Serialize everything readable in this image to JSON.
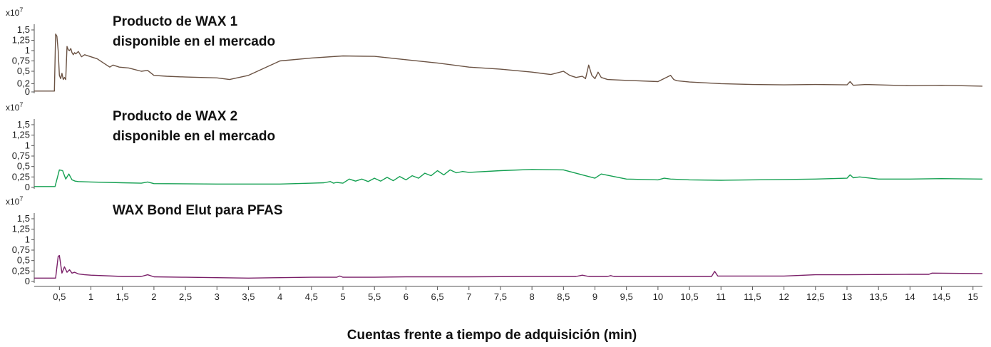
{
  "chart_data": {
    "type": "line",
    "xlabel": "Cuentas frente a tiempo de adquisición (min)",
    "xlim": [
      0.1,
      15.15
    ],
    "x_ticks": [
      "0,5",
      "1",
      "1,5",
      "2",
      "2,5",
      "3",
      "3,5",
      "4",
      "4,5",
      "5",
      "5,5",
      "6",
      "6,5",
      "7",
      "7,5",
      "8",
      "8,5",
      "9",
      "9,5",
      "10",
      "10,5",
      "11",
      "11,5",
      "12",
      "12,5",
      "13",
      "13,5",
      "14",
      "14,5",
      "15"
    ],
    "y_multiplier": "x10",
    "y_multiplier_exp": "7",
    "panels": [
      {
        "title_lines": [
          "Producto de WAX 1",
          "disponible en el mercado"
        ],
        "color": "#6b5344",
        "ylim": [
          0,
          1.5
        ],
        "y_ticks": [
          "0",
          "0,2",
          "0,5",
          "0,75",
          "1",
          "1,25",
          "1,5"
        ],
        "y_tick_values": [
          0,
          0.2,
          0.5,
          0.75,
          1,
          1.25,
          1.5
        ],
        "x": [
          0.1,
          0.42,
          0.44,
          0.46,
          0.48,
          0.5,
          0.52,
          0.54,
          0.56,
          0.58,
          0.6,
          0.62,
          0.64,
          0.66,
          0.68,
          0.7,
          0.72,
          0.74,
          0.76,
          0.8,
          0.85,
          0.9,
          1.0,
          1.1,
          1.2,
          1.3,
          1.35,
          1.45,
          1.6,
          1.8,
          1.9,
          2.0,
          2.2,
          2.5,
          3.0,
          3.2,
          3.5,
          4.0,
          4.5,
          5.0,
          5.5,
          6.0,
          6.5,
          7.0,
          7.5,
          8.0,
          8.3,
          8.5,
          8.6,
          8.7,
          8.8,
          8.85,
          8.9,
          8.95,
          9.0,
          9.05,
          9.1,
          9.2,
          9.5,
          10.0,
          10.2,
          10.25,
          10.3,
          10.5,
          11.0,
          11.5,
          12.0,
          12.5,
          13.0,
          13.05,
          13.1,
          13.3,
          14.0,
          14.5,
          15.15
        ],
        "y": [
          0.02,
          0.02,
          1.4,
          1.35,
          1.0,
          0.4,
          0.32,
          0.45,
          0.3,
          0.35,
          0.3,
          1.1,
          1.02,
          1.0,
          1.05,
          0.95,
          0.9,
          0.95,
          0.92,
          0.98,
          0.85,
          0.9,
          0.85,
          0.8,
          0.7,
          0.6,
          0.65,
          0.6,
          0.58,
          0.5,
          0.52,
          0.4,
          0.38,
          0.36,
          0.34,
          0.3,
          0.4,
          0.75,
          0.82,
          0.87,
          0.86,
          0.78,
          0.7,
          0.6,
          0.55,
          0.48,
          0.42,
          0.5,
          0.4,
          0.35,
          0.38,
          0.32,
          0.65,
          0.4,
          0.32,
          0.48,
          0.35,
          0.3,
          0.28,
          0.25,
          0.4,
          0.3,
          0.27,
          0.24,
          0.2,
          0.18,
          0.17,
          0.18,
          0.17,
          0.25,
          0.16,
          0.18,
          0.15,
          0.16,
          0.14
        ]
      },
      {
        "title_lines": [
          "Producto de WAX 2",
          "disponible en el mercado"
        ],
        "color": "#15a052",
        "ylim": [
          0,
          1.5
        ],
        "y_ticks": [
          "0",
          "0,25",
          "0,5",
          "0,75",
          "1",
          "1,25",
          "1,5"
        ],
        "y_tick_values": [
          0,
          0.25,
          0.5,
          0.75,
          1,
          1.25,
          1.5
        ],
        "x": [
          0.1,
          0.43,
          0.5,
          0.55,
          0.6,
          0.65,
          0.7,
          0.75,
          0.8,
          1.0,
          1.5,
          1.8,
          1.9,
          2.0,
          3.0,
          4.0,
          4.5,
          4.7,
          4.8,
          4.85,
          4.9,
          5.0,
          5.1,
          5.2,
          5.3,
          5.4,
          5.5,
          5.6,
          5.7,
          5.8,
          5.9,
          6.0,
          6.1,
          6.2,
          6.3,
          6.4,
          6.5,
          6.6,
          6.7,
          6.8,
          6.9,
          7.0,
          7.5,
          8.0,
          8.5,
          8.8,
          9.0,
          9.1,
          9.5,
          10.0,
          10.1,
          10.2,
          10.5,
          11.0,
          11.5,
          12.0,
          12.5,
          13.0,
          13.05,
          13.1,
          13.2,
          13.5,
          14.0,
          14.5,
          15.15
        ],
        "y": [
          0.02,
          0.02,
          0.42,
          0.4,
          0.2,
          0.32,
          0.18,
          0.15,
          0.14,
          0.13,
          0.11,
          0.1,
          0.13,
          0.09,
          0.08,
          0.08,
          0.1,
          0.11,
          0.14,
          0.1,
          0.12,
          0.1,
          0.2,
          0.15,
          0.2,
          0.14,
          0.22,
          0.15,
          0.24,
          0.16,
          0.26,
          0.18,
          0.28,
          0.22,
          0.34,
          0.28,
          0.4,
          0.3,
          0.42,
          0.35,
          0.38,
          0.36,
          0.4,
          0.43,
          0.42,
          0.3,
          0.22,
          0.32,
          0.2,
          0.18,
          0.22,
          0.2,
          0.18,
          0.17,
          0.18,
          0.19,
          0.2,
          0.22,
          0.3,
          0.23,
          0.25,
          0.2,
          0.2,
          0.21,
          0.2
        ]
      },
      {
        "title_lines": [
          "WAX Bond Elut para PFAS"
        ],
        "color": "#7a1f68",
        "ylim": [
          0,
          1.5
        ],
        "y_ticks": [
          "0",
          "0,25",
          "0,5",
          "0,75",
          "1",
          "1,25",
          "1,5"
        ],
        "y_tick_values": [
          0,
          0.25,
          0.5,
          0.75,
          1,
          1.25,
          1.5
        ],
        "x": [
          0.1,
          0.44,
          0.48,
          0.5,
          0.54,
          0.58,
          0.62,
          0.66,
          0.7,
          0.74,
          0.8,
          0.9,
          1.0,
          1.5,
          1.8,
          1.9,
          2.0,
          2.5,
          3.0,
          3.5,
          4.0,
          4.5,
          4.9,
          4.95,
          5.0,
          5.5,
          6.0,
          7.0,
          8.0,
          8.7,
          8.8,
          8.9,
          9.2,
          9.25,
          9.3,
          10.0,
          10.5,
          10.85,
          10.9,
          10.95,
          11.5,
          12.0,
          12.5,
          13.0,
          14.0,
          14.3,
          14.35,
          15.15
        ],
        "y": [
          0.08,
          0.08,
          0.6,
          0.62,
          0.2,
          0.35,
          0.22,
          0.28,
          0.2,
          0.22,
          0.18,
          0.16,
          0.15,
          0.12,
          0.12,
          0.16,
          0.11,
          0.1,
          0.09,
          0.08,
          0.09,
          0.1,
          0.1,
          0.13,
          0.1,
          0.1,
          0.11,
          0.11,
          0.12,
          0.12,
          0.15,
          0.12,
          0.12,
          0.14,
          0.12,
          0.12,
          0.12,
          0.12,
          0.24,
          0.13,
          0.13,
          0.13,
          0.16,
          0.16,
          0.17,
          0.17,
          0.2,
          0.19
        ]
      }
    ]
  }
}
